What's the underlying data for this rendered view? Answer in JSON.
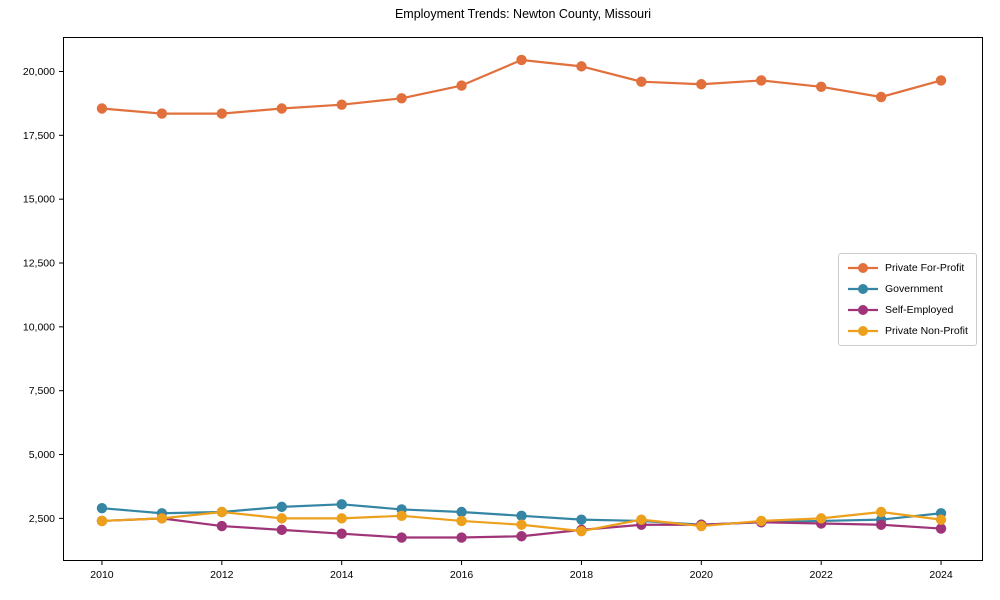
{
  "chart_data": {
    "type": "line",
    "title": "Employment Trends: Newton County, Missouri",
    "x": [
      2010,
      2011,
      2012,
      2013,
      2014,
      2015,
      2016,
      2017,
      2018,
      2019,
      2020,
      2021,
      2022,
      2023,
      2024
    ],
    "series": [
      {
        "name": "Private For-Profit",
        "color": "#E1703C",
        "values": [
          18550,
          18350,
          18350,
          18550,
          18700,
          18950,
          19450,
          20450,
          20200,
          19600,
          19500,
          19650,
          19400,
          19000,
          19650
        ]
      },
      {
        "name": "Government",
        "color": "#3585A4",
        "values": [
          2900,
          2700,
          2750,
          2950,
          3050,
          2850,
          2750,
          2600,
          2450,
          2400,
          2250,
          2350,
          2400,
          2450,
          2700
        ]
      },
      {
        "name": "Self-Employed",
        "color": "#A03478",
        "values": [
          2400,
          2500,
          2200,
          2050,
          1900,
          1750,
          1750,
          1800,
          2050,
          2250,
          2250,
          2350,
          2300,
          2250,
          2100
        ]
      },
      {
        "name": "Private Non-Profit",
        "color": "#ECA01C",
        "values": [
          2400,
          2500,
          2750,
          2500,
          2500,
          2600,
          2400,
          2250,
          2000,
          2450,
          2200,
          2400,
          2500,
          2750,
          2450
        ]
      }
    ],
    "xticks": [
      2010,
      2012,
      2014,
      2016,
      2018,
      2020,
      2022,
      2024
    ],
    "xtick_labels": [
      "2010",
      "2012",
      "2014",
      "2016",
      "2018",
      "2020",
      "2022",
      "2024"
    ],
    "yticks": [
      2500,
      5000,
      7500,
      10000,
      12500,
      15000,
      17500,
      20000
    ],
    "ytick_labels": [
      "2,500",
      "5,000",
      "7,500",
      "10,000",
      "12,500",
      "15,000",
      "17,500",
      "20,000"
    ],
    "xlim": [
      2009.35,
      2024.7
    ],
    "ylim": [
      870,
      21350
    ],
    "grid": false,
    "legend_position": "right-middle",
    "axis_color": "#000000",
    "legend_border_color": "#cccccc",
    "background_color": "#ffffff"
  }
}
